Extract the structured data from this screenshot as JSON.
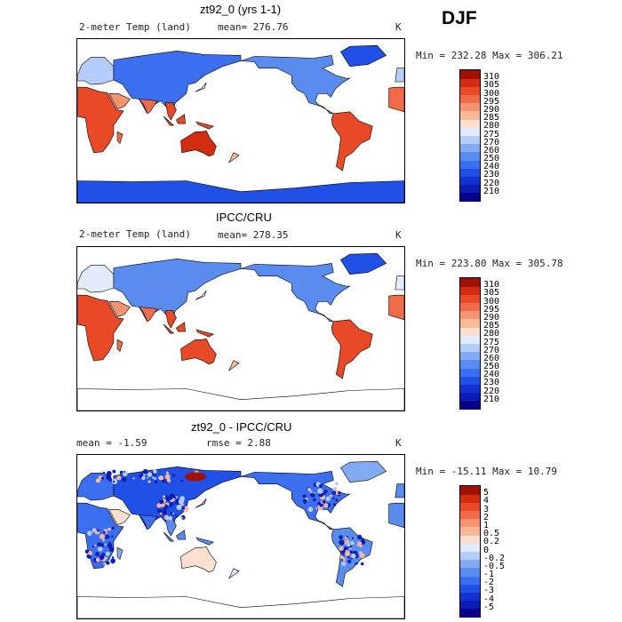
{
  "season": "DJF",
  "panels": [
    {
      "title": "zt92_0 (yrs 1-1)",
      "left_label": "2-meter Temp (land)",
      "stat1": "mean= 276.76",
      "stat2": "",
      "unit": "K",
      "minmax": "Min = 232.28 Max = 306.21",
      "kind": "abs"
    },
    {
      "title": "IPCC/CRU",
      "left_label": "2-meter Temp (land)",
      "stat1": "mean= 278.35",
      "stat2": "",
      "unit": "K",
      "minmax": "Min = 223.80 Max = 305.78",
      "kind": "abs2"
    },
    {
      "title": "zt92_0 - IPCC/CRU",
      "left_label": "mean =   -1.59",
      "stat1": "rmse =    2.88",
      "stat2": "",
      "unit": "K",
      "minmax": "Min = -15.11 Max =  10.79",
      "kind": "diff"
    }
  ],
  "chart_data": [
    {
      "type": "heatmap",
      "title": "zt92_0 (yrs 1-1)",
      "variable": "2-meter Temp (land)",
      "units": "K",
      "mean": 276.76,
      "min": 232.28,
      "max": 306.21,
      "colorbar_levels": [
        210,
        220,
        230,
        240,
        250,
        260,
        270,
        275,
        280,
        285,
        290,
        295,
        300,
        305,
        310
      ],
      "colorbar_colors": [
        "#08008c",
        "#0a1eb4",
        "#1432d2",
        "#2050e6",
        "#3c6ef0",
        "#5a8cf0",
        "#82aaf5",
        "#b4cdfa",
        "#e1ebfa",
        "#fde0d0",
        "#f9b898",
        "#f69470",
        "#f06c48",
        "#e84a28",
        "#d22d10",
        "#a01000"
      ]
    },
    {
      "type": "heatmap",
      "title": "IPCC/CRU",
      "variable": "2-meter Temp (land)",
      "units": "K",
      "mean": 278.35,
      "min": 223.8,
      "max": 305.78,
      "colorbar_levels": [
        210,
        220,
        230,
        240,
        250,
        260,
        270,
        275,
        280,
        285,
        290,
        295,
        300,
        305,
        310
      ],
      "colorbar_colors": [
        "#08008c",
        "#0a1eb4",
        "#1432d2",
        "#2050e6",
        "#3c6ef0",
        "#5a8cf0",
        "#82aaf5",
        "#b4cdfa",
        "#e1ebfa",
        "#fde0d0",
        "#f9b898",
        "#f69470",
        "#f06c48",
        "#e84a28",
        "#d22d10",
        "#a01000"
      ]
    },
    {
      "type": "heatmap",
      "title": "zt92_0 - IPCC/CRU",
      "units": "K",
      "mean": -1.59,
      "rmse": 2.88,
      "min": -15.11,
      "max": 10.79,
      "colorbar_levels": [
        "-5",
        "-4",
        "-3",
        "-2",
        "-1",
        "-0.5",
        "-0.2",
        "0",
        "0.2",
        "0.5",
        "1",
        "2",
        "3",
        "4",
        "5"
      ],
      "colorbar_colors": [
        "#08008c",
        "#0a1eb4",
        "#1432d2",
        "#2050e6",
        "#3c6ef0",
        "#5a8cf0",
        "#82aaf5",
        "#b4cdfa",
        "#e1ebfa",
        "#fde0d0",
        "#f9b898",
        "#f69470",
        "#f06c48",
        "#e84a28",
        "#d22d10",
        "#a01000"
      ]
    }
  ]
}
